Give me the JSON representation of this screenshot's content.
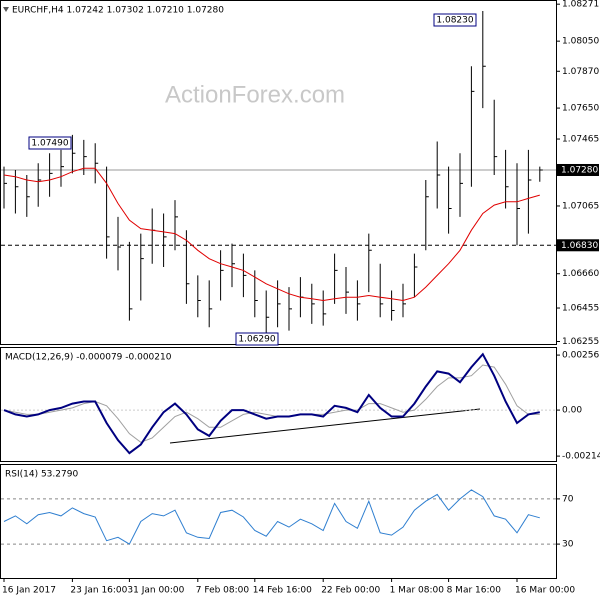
{
  "chart_data": [
    {
      "type": "ohlc",
      "title": "EURCHF,H4  1.07242 1.07302 1.07210 1.07280",
      "watermark": "ActionForex.com",
      "categories": [
        "16 Jan 2017",
        null,
        null,
        null,
        null,
        null,
        "23 Jan 16:00",
        null,
        null,
        null,
        null,
        "31 Jan 00:00",
        null,
        null,
        null,
        null,
        null,
        "7 Feb 08:00",
        null,
        null,
        null,
        null,
        "14 Feb 16:00",
        null,
        null,
        null,
        null,
        null,
        "22 Feb 00:00",
        null,
        null,
        null,
        null,
        null,
        "1 Mar 08:00",
        null,
        null,
        null,
        null,
        "8 Mar 16:00",
        null,
        null,
        null,
        null,
        null,
        "16 Mar 00:00",
        null,
        null
      ],
      "high": [
        1.073,
        1.0728,
        1.0725,
        1.0732,
        1.0738,
        1.074,
        1.0749,
        1.0746,
        1.0744,
        1.073,
        1.07,
        1.0685,
        1.069,
        1.0705,
        1.0702,
        1.071,
        1.0692,
        1.0665,
        1.0662,
        1.068,
        1.0684,
        1.0678,
        1.0668,
        1.0656,
        1.0662,
        1.0658,
        1.0664,
        1.066,
        1.0656,
        1.0678,
        1.067,
        1.0662,
        1.069,
        1.0672,
        1.0656,
        1.066,
        1.0678,
        1.0722,
        1.0745,
        1.073,
        1.0738,
        1.079,
        1.0823,
        1.077,
        1.074,
        1.0732,
        1.074,
        1.073
      ],
      "low": [
        1.0705,
        1.0702,
        1.07,
        1.0706,
        1.0712,
        1.0718,
        1.0726,
        1.0725,
        1.072,
        1.0675,
        1.0668,
        1.0638,
        1.065,
        1.0672,
        1.067,
        1.068,
        1.0648,
        1.064,
        1.0634,
        1.065,
        1.0658,
        1.0652,
        1.064,
        1.0629,
        1.0634,
        1.0632,
        1.064,
        1.0636,
        1.0635,
        1.0648,
        1.0642,
        1.0638,
        1.0655,
        1.064,
        1.0638,
        1.064,
        1.0652,
        1.068,
        1.0705,
        1.069,
        1.07,
        1.0718,
        1.0765,
        1.0725,
        1.0705,
        1.0683,
        1.069,
        1.0721
      ],
      "close": [
        1.072,
        1.0718,
        1.0712,
        1.0722,
        1.0726,
        1.073,
        1.0738,
        1.0736,
        1.0732,
        1.0688,
        1.0682,
        1.0645,
        1.0675,
        1.0692,
        1.0688,
        1.07,
        1.066,
        1.065,
        1.0645,
        1.0668,
        1.0672,
        1.0665,
        1.065,
        1.064,
        1.0648,
        1.0645,
        1.0652,
        1.0648,
        1.0642,
        1.0668,
        1.0655,
        1.0648,
        1.068,
        1.0648,
        1.0644,
        1.0648,
        1.067,
        1.0712,
        1.0725,
        1.0705,
        1.072,
        1.0775,
        1.079,
        1.0736,
        1.0718,
        1.0705,
        1.0722,
        1.0728
      ],
      "color": "#000000",
      "moving_average": {
        "color": "#e00000",
        "values": [
          1.0725,
          1.0724,
          1.0722,
          1.0721,
          1.0722,
          1.0724,
          1.0727,
          1.0729,
          1.0729,
          1.072,
          1.0708,
          1.0698,
          1.0693,
          1.0692,
          1.0691,
          1.069,
          1.0686,
          1.068,
          1.0675,
          1.0672,
          1.067,
          1.0668,
          1.0664,
          1.066,
          1.0657,
          1.0654,
          1.0652,
          1.0651,
          1.065,
          1.0651,
          1.0652,
          1.0652,
          1.0653,
          1.0652,
          1.0651,
          1.065,
          1.0652,
          1.0658,
          1.0665,
          1.0672,
          1.068,
          1.0692,
          1.0702,
          1.0707,
          1.0709,
          1.0709,
          1.0711,
          1.0713
        ]
      },
      "ylim": [
        1.0624,
        1.0829
      ],
      "yticks": [
        1.08271,
        {
          "value": 1.0805,
          "label": "1.08050"
        },
        {
          "value": 1.0787,
          "label": "1.07870"
        },
        {
          "value": 1.0765,
          "label": "1.07650"
        },
        1.07465,
        1.07065,
        {
          "value": 1.0666,
          "label": "1.06660"
        },
        1.06455,
        1.06255
      ],
      "hlines": [
        {
          "value": 1.0728,
          "label": "1.07280"
        },
        {
          "value": 1.0683,
          "label": "1.06830"
        }
      ],
      "annotations": [
        "1.07490",
        "1.08230",
        "1.06290"
      ]
    },
    {
      "type": "macd",
      "title": "MACD(12,26,9) -0.000079 -0.000210",
      "series": [
        {
          "color": "#000080",
          "values": [
            0.0,
            -0.0002,
            -0.0003,
            -0.0002,
            0.0,
            0.0001,
            0.0003,
            0.0004,
            0.0004,
            -0.0006,
            -0.0014,
            -0.002,
            -0.0016,
            -0.0008,
            -0.0001,
            0.0003,
            -0.0002,
            -0.0009,
            -0.0012,
            -0.0005,
            0.0,
            0.0,
            -0.0002,
            -0.0004,
            -0.0003,
            -0.0003,
            -0.0002,
            -0.0002,
            -0.0003,
            0.0002,
            0.0001,
            -0.0001,
            0.0007,
            0.0001,
            -0.0003,
            -0.0003,
            0.0003,
            0.0011,
            0.0018,
            0.0017,
            0.0013,
            0.002,
            0.0026,
            0.0016,
            0.0004,
            -0.0006,
            -0.0002,
            -0.0001
          ]
        },
        {
          "color": "#a0a0a0",
          "values": [
            0.0,
            -0.0001,
            -0.0002,
            -0.0002,
            -0.0001,
            0.0,
            0.0001,
            0.0003,
            0.0004,
            0.0002,
            -0.0004,
            -0.0011,
            -0.0015,
            -0.0013,
            -0.0008,
            -0.0003,
            -0.0001,
            -0.0004,
            -0.0008,
            -0.0008,
            -0.0005,
            -0.0002,
            -0.0001,
            -0.0002,
            -0.0003,
            -0.0003,
            -0.0002,
            -0.0002,
            -0.0002,
            -0.0001,
            0.0,
            0.0,
            0.0003,
            0.0003,
            0.0001,
            -0.0001,
            0.0,
            0.0005,
            0.0011,
            0.0015,
            0.0015,
            0.0016,
            0.0021,
            0.002,
            0.0012,
            0.0002,
            -0.0002,
            -0.0002
          ]
        }
      ],
      "ylim": [
        -0.00237,
        0.00289
      ],
      "yticks": [
        0.00256,
        {
          "value": 0,
          "label": "0.00"
        },
        -0.002142
      ]
    },
    {
      "type": "line",
      "title": "RSI(14) 53.2790",
      "color": "#2f7fd0",
      "values": [
        50,
        55,
        48,
        56,
        58,
        55,
        62,
        57,
        54,
        33,
        36,
        30,
        50,
        57,
        55,
        60,
        40,
        36,
        35,
        58,
        60,
        54,
        42,
        37,
        50,
        45,
        52,
        48,
        42,
        66,
        50,
        44,
        68,
        40,
        38,
        45,
        60,
        68,
        74,
        60,
        70,
        78,
        72,
        55,
        52,
        40,
        56,
        53.279
      ],
      "ylim": [
        0,
        100
      ],
      "yticks": [
        70,
        30
      ],
      "grid": true
    }
  ]
}
